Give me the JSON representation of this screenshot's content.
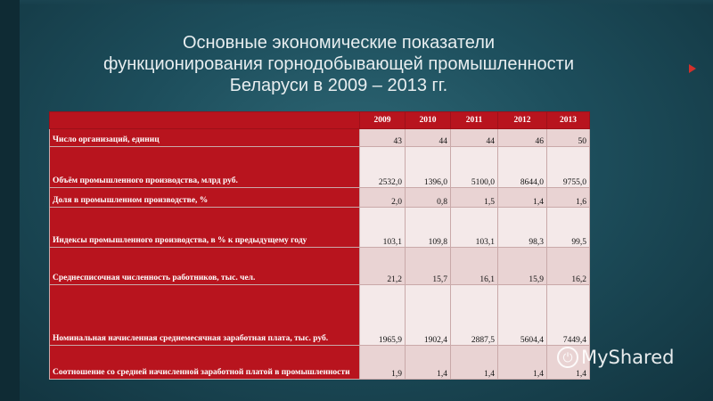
{
  "slide": {
    "title_lines": [
      "Основные экономические показатели",
      "функционирования горнодобывающей промышленности",
      "Беларуси в 2009 – 2013 гг."
    ]
  },
  "table": {
    "years": [
      "2009",
      "2010",
      "2011",
      "2012",
      "2013"
    ],
    "rows": [
      {
        "label": "Число организаций, единиц",
        "values": [
          "43",
          "44",
          "44",
          "46",
          "50"
        ]
      },
      {
        "label": "Объём промышленного производства, млрд руб.",
        "values": [
          "2532,0",
          "1396,0",
          "5100,0",
          "8644,0",
          "9755,0"
        ]
      },
      {
        "label": "Доля в промышленном производстве, %",
        "values": [
          "2,0",
          "0,8",
          "1,5",
          "1,4",
          "1,6"
        ]
      },
      {
        "label": "Индексы промышленного производства, в % к предыдущему году",
        "values": [
          "103,1",
          "109,8",
          "103,1",
          "98,3",
          "99,5"
        ]
      },
      {
        "label": "Среднесписочная численность работников, тыс. чел.",
        "values": [
          "21,2",
          "15,7",
          "16,1",
          "15,9",
          "16,2"
        ]
      },
      {
        "label": "Номинальная начисленная среднемесячная заработная плата, тыс. руб.",
        "values": [
          "1965,9",
          "1902,4",
          "2887,5",
          "5604,4",
          "7449,4"
        ]
      },
      {
        "label": "Соотношение со средней начисленной заработной платой в промышленности",
        "values": [
          "1,9",
          "1,4",
          "1,4",
          "1,4",
          "1,4"
        ]
      }
    ]
  },
  "watermark": {
    "text": "MyShared",
    "icon": "power-icon"
  },
  "colors": {
    "header_red": "#b8141e",
    "background": "#1d4e5c"
  }
}
